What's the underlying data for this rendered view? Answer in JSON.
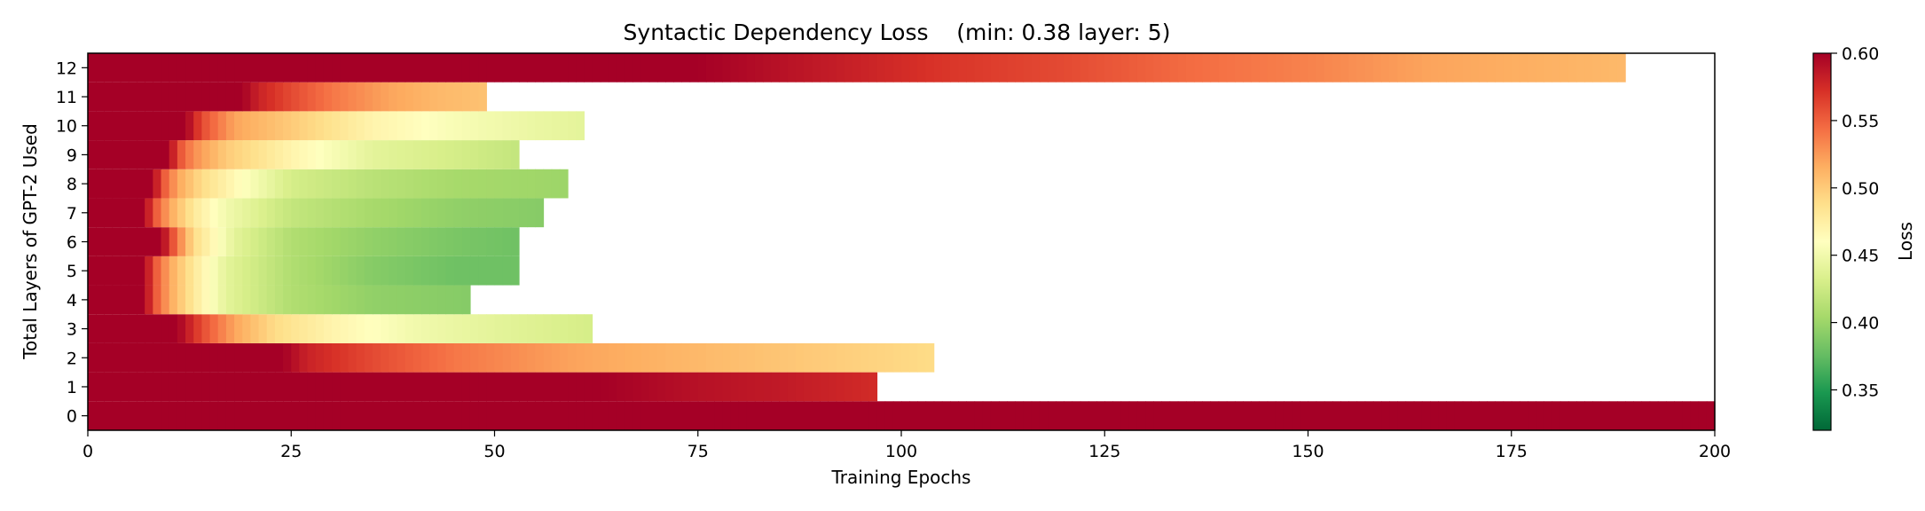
{
  "chart_data": {
    "type": "heatmap",
    "title": "Syntactic Dependency Loss    (min: 0.38 layer: 5)",
    "xlabel": "Training Epochs",
    "ylabel": "Total Layers of GPT-2 Used",
    "xlim": [
      0,
      200
    ],
    "ylim": [
      -0.5,
      12.5
    ],
    "x_ticks": [
      0,
      25,
      50,
      75,
      100,
      125,
      150,
      175,
      200
    ],
    "y_ticks": [
      0,
      1,
      2,
      3,
      4,
      5,
      6,
      7,
      8,
      9,
      10,
      11,
      12
    ],
    "colormap": "RdYlGn_r",
    "colorbar": {
      "label": "Loss",
      "vmin": 0.32,
      "vmax": 0.6,
      "ticks": [
        "0.35",
        "0.40",
        "0.45",
        "0.50",
        "0.55",
        "0.60"
      ]
    },
    "series": [
      {
        "layer": 0,
        "epochs": 200,
        "points": [
          [
            0,
            0.6
          ],
          [
            200,
            0.6
          ]
        ]
      },
      {
        "layer": 1,
        "epochs": 97,
        "points": [
          [
            0,
            0.6
          ],
          [
            63,
            0.6
          ],
          [
            75,
            0.59
          ],
          [
            85,
            0.585
          ],
          [
            97,
            0.575
          ]
        ]
      },
      {
        "layer": 2,
        "epochs": 104,
        "points": [
          [
            0,
            0.6
          ],
          [
            24,
            0.6
          ],
          [
            27,
            0.58
          ],
          [
            35,
            0.56
          ],
          [
            45,
            0.54
          ],
          [
            60,
            0.52
          ],
          [
            75,
            0.51
          ],
          [
            90,
            0.5
          ],
          [
            104,
            0.49
          ]
        ]
      },
      {
        "layer": 3,
        "epochs": 62,
        "points": [
          [
            0,
            0.6
          ],
          [
            11,
            0.6
          ],
          [
            14,
            0.56
          ],
          [
            18,
            0.52
          ],
          [
            23,
            0.49
          ],
          [
            30,
            0.47
          ],
          [
            40,
            0.45
          ],
          [
            50,
            0.44
          ],
          [
            62,
            0.43
          ]
        ]
      },
      {
        "layer": 4,
        "epochs": 47,
        "points": [
          [
            0,
            0.6
          ],
          [
            7,
            0.6
          ],
          [
            8,
            0.56
          ],
          [
            10,
            0.52
          ],
          [
            13,
            0.48
          ],
          [
            17,
            0.44
          ],
          [
            25,
            0.41
          ],
          [
            35,
            0.395
          ],
          [
            47,
            0.39
          ]
        ]
      },
      {
        "layer": 5,
        "epochs": 53,
        "points": [
          [
            0,
            0.6
          ],
          [
            7,
            0.6
          ],
          [
            8,
            0.56
          ],
          [
            10,
            0.52
          ],
          [
            13,
            0.48
          ],
          [
            17,
            0.44
          ],
          [
            25,
            0.41
          ],
          [
            35,
            0.39
          ],
          [
            45,
            0.38
          ],
          [
            53,
            0.38
          ]
        ]
      },
      {
        "layer": 6,
        "epochs": 53,
        "points": [
          [
            0,
            0.6
          ],
          [
            9,
            0.6
          ],
          [
            11,
            0.54
          ],
          [
            13,
            0.49
          ],
          [
            18,
            0.44
          ],
          [
            25,
            0.41
          ],
          [
            35,
            0.395
          ],
          [
            45,
            0.385
          ],
          [
            53,
            0.38
          ]
        ]
      },
      {
        "layer": 7,
        "epochs": 56,
        "points": [
          [
            0,
            0.6
          ],
          [
            7,
            0.6
          ],
          [
            8,
            0.56
          ],
          [
            10,
            0.52
          ],
          [
            13,
            0.48
          ],
          [
            17,
            0.45
          ],
          [
            25,
            0.42
          ],
          [
            35,
            0.405
          ],
          [
            45,
            0.395
          ],
          [
            56,
            0.39
          ]
        ]
      },
      {
        "layer": 8,
        "epochs": 59,
        "points": [
          [
            0,
            0.6
          ],
          [
            8,
            0.6
          ],
          [
            9,
            0.56
          ],
          [
            11,
            0.52
          ],
          [
            14,
            0.49
          ],
          [
            19,
            0.46
          ],
          [
            25,
            0.43
          ],
          [
            35,
            0.415
          ],
          [
            45,
            0.405
          ],
          [
            59,
            0.4
          ]
        ]
      },
      {
        "layer": 9,
        "epochs": 53,
        "points": [
          [
            0,
            0.6
          ],
          [
            10,
            0.6
          ],
          [
            11,
            0.56
          ],
          [
            13,
            0.53
          ],
          [
            17,
            0.5
          ],
          [
            25,
            0.47
          ],
          [
            35,
            0.44
          ],
          [
            45,
            0.43
          ],
          [
            53,
            0.42
          ]
        ]
      },
      {
        "layer": 10,
        "epochs": 61,
        "points": [
          [
            0,
            0.6
          ],
          [
            12,
            0.6
          ],
          [
            14,
            0.56
          ],
          [
            18,
            0.52
          ],
          [
            25,
            0.5
          ],
          [
            35,
            0.47
          ],
          [
            45,
            0.455
          ],
          [
            55,
            0.445
          ],
          [
            61,
            0.44
          ]
        ]
      },
      {
        "layer": 11,
        "epochs": 49,
        "points": [
          [
            0,
            0.6
          ],
          [
            19,
            0.6
          ],
          [
            21,
            0.58
          ],
          [
            25,
            0.56
          ],
          [
            30,
            0.54
          ],
          [
            37,
            0.52
          ],
          [
            43,
            0.51
          ],
          [
            49,
            0.505
          ]
        ]
      },
      {
        "layer": 12,
        "epochs": 189,
        "points": [
          [
            0,
            0.6
          ],
          [
            75,
            0.6
          ],
          [
            85,
            0.59
          ],
          [
            95,
            0.58
          ],
          [
            105,
            0.57
          ],
          [
            120,
            0.56
          ],
          [
            135,
            0.545
          ],
          [
            150,
            0.535
          ],
          [
            165,
            0.52
          ],
          [
            189,
            0.51
          ]
        ]
      }
    ]
  }
}
